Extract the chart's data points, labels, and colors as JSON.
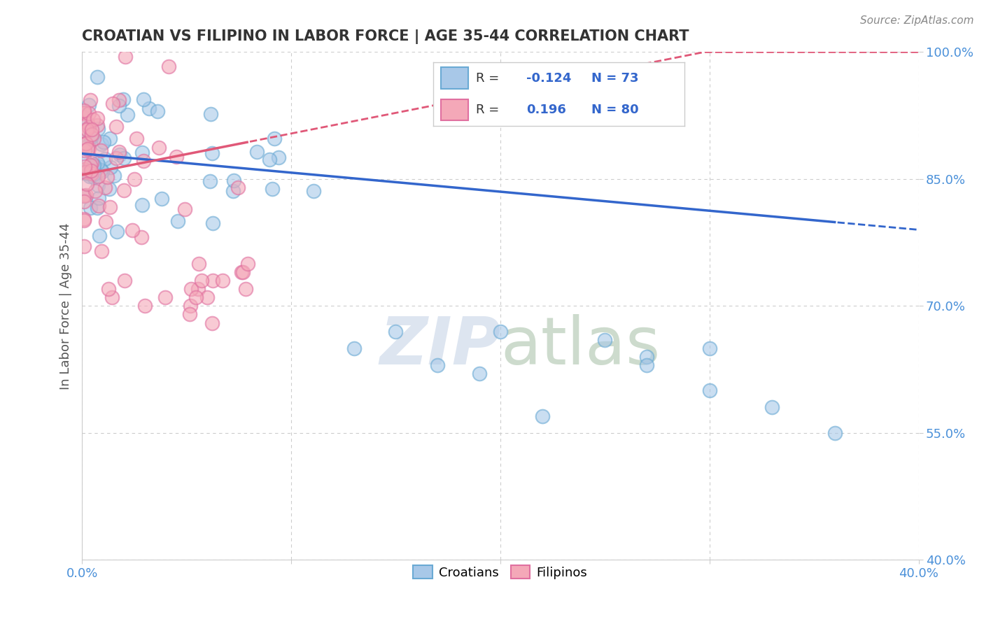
{
  "title": "CROATIAN VS FILIPINO IN LABOR FORCE | AGE 35-44 CORRELATION CHART",
  "source_text": "Source: ZipAtlas.com",
  "ylabel": "In Labor Force | Age 35-44",
  "xlim": [
    0.0,
    0.4
  ],
  "ylim": [
    0.4,
    1.0
  ],
  "xticks": [
    0.0,
    0.1,
    0.2,
    0.3,
    0.4
  ],
  "xticklabels": [
    "0.0%",
    "",
    "",
    "",
    "40.0%"
  ],
  "yticks": [
    0.4,
    0.55,
    0.7,
    0.85,
    1.0
  ],
  "yticklabels": [
    "40.0%",
    "55.0%",
    "70.0%",
    "85.0%",
    "100.0%"
  ],
  "croatian_R": -0.124,
  "croatian_N": 73,
  "filipino_R": 0.196,
  "filipino_N": 80,
  "croatian_color": "#a8c8e8",
  "croatian_edge_color": "#6aaad4",
  "filipino_color": "#f4a8b8",
  "filipino_edge_color": "#e070a0",
  "trend_blue_color": "#3366cc",
  "trend_pink_color": "#e05878",
  "watermark_color": "#dde5f0",
  "legend_color_blue": "#3366cc",
  "bg_color": "#ffffff",
  "grid_color": "#cccccc",
  "tick_color": "#4a90d9",
  "title_color": "#333333",
  "ylabel_color": "#555555",
  "source_color": "#888888"
}
